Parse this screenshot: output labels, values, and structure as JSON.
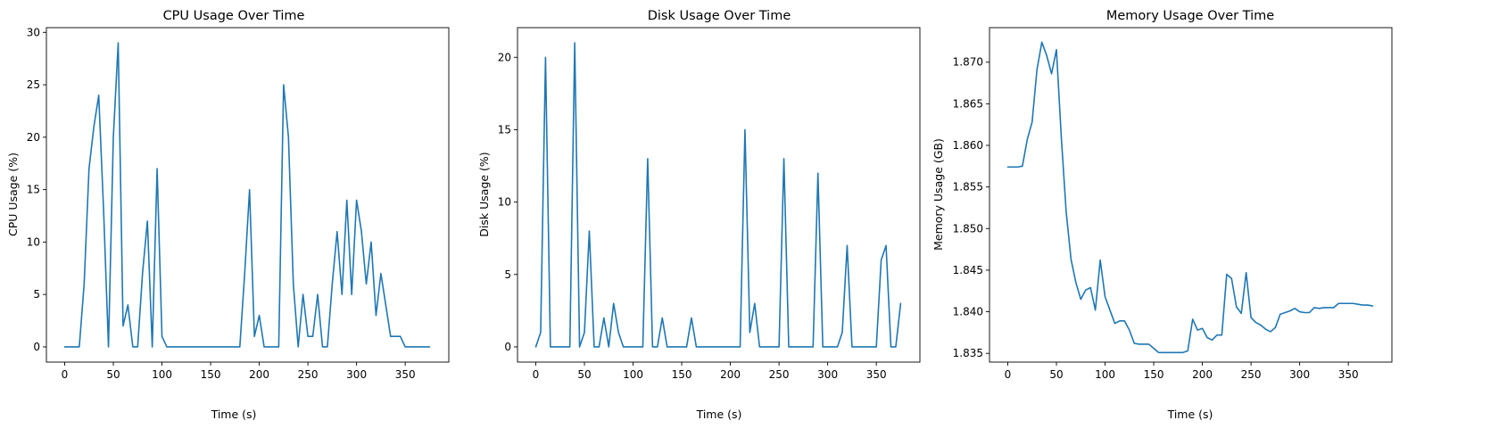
{
  "colors": {
    "series": "#1f77b4",
    "axes": "#000000",
    "background": "#ffffff"
  },
  "chart_data": [
    {
      "type": "line",
      "title": "CPU Usage Over Time",
      "xlabel": "Time (s)",
      "ylabel": "CPU Usage (%)",
      "xlim": [
        -18.8,
        394.8
      ],
      "ylim": [
        -1.45,
        30.45
      ],
      "xticks": [
        0,
        50,
        100,
        150,
        200,
        250,
        300,
        350
      ],
      "xtick_labels": [
        "0",
        "50",
        "100",
        "150",
        "200",
        "250",
        "300",
        "350"
      ],
      "yticks": [
        0,
        5,
        10,
        15,
        20,
        25,
        30
      ],
      "ytick_labels": [
        "0",
        "5",
        "10",
        "15",
        "20",
        "25",
        "30"
      ],
      "grid": false,
      "legend": "none",
      "series": [
        {
          "x": [
            0,
            5,
            10,
            15,
            20,
            25,
            30,
            35,
            40,
            45,
            50,
            55,
            60,
            65,
            70,
            75,
            80,
            85,
            90,
            95,
            100,
            105,
            110,
            115,
            120,
            125,
            130,
            135,
            140,
            145,
            150,
            155,
            160,
            165,
            170,
            175,
            180,
            185,
            190,
            195,
            200,
            205,
            210,
            215,
            220,
            225,
            230,
            235,
            240,
            245,
            250,
            255,
            260,
            265,
            270,
            275,
            280,
            285,
            290,
            295,
            300,
            305,
            310,
            315,
            320,
            325,
            330,
            335,
            340,
            345,
            350,
            355,
            360,
            365,
            370,
            375
          ],
          "y": [
            0,
            0,
            0,
            0,
            6,
            17,
            21,
            24,
            13,
            0,
            20,
            29,
            2,
            4,
            0,
            0,
            7,
            12,
            0,
            17,
            1,
            0,
            0,
            0,
            0,
            0,
            0,
            0,
            0,
            0,
            0,
            0,
            0,
            0,
            0,
            0,
            0,
            7,
            15,
            1,
            3,
            0,
            0,
            0,
            0,
            25,
            20,
            6,
            0,
            5,
            1,
            1,
            5,
            0,
            0,
            6,
            11,
            5,
            14,
            5,
            14,
            11,
            6,
            10,
            3,
            7,
            4,
            1,
            1,
            1,
            0,
            0,
            0,
            0,
            0,
            0
          ]
        }
      ]
    },
    {
      "type": "line",
      "title": "Disk Usage Over Time",
      "xlabel": "Time (s)",
      "ylabel": "Disk Usage (%)",
      "xlim": [
        -18.8,
        394.8
      ],
      "ylim": [
        -1.05,
        22.05
      ],
      "xticks": [
        0,
        50,
        100,
        150,
        200,
        250,
        300,
        350
      ],
      "xtick_labels": [
        "0",
        "50",
        "100",
        "150",
        "200",
        "250",
        "300",
        "350"
      ],
      "yticks": [
        0,
        5,
        10,
        15,
        20
      ],
      "ytick_labels": [
        "0",
        "5",
        "10",
        "15",
        "20"
      ],
      "grid": false,
      "legend": "none",
      "series": [
        {
          "x": [
            0,
            5,
            10,
            15,
            20,
            25,
            30,
            35,
            40,
            45,
            50,
            55,
            60,
            65,
            70,
            75,
            80,
            85,
            90,
            95,
            100,
            105,
            110,
            115,
            120,
            125,
            130,
            135,
            140,
            145,
            150,
            155,
            160,
            165,
            170,
            175,
            180,
            185,
            190,
            195,
            200,
            205,
            210,
            215,
            220,
            225,
            230,
            235,
            240,
            245,
            250,
            255,
            260,
            265,
            270,
            275,
            280,
            285,
            290,
            295,
            300,
            305,
            310,
            315,
            320,
            325,
            330,
            335,
            340,
            345,
            350,
            355,
            360,
            365,
            370,
            375
          ],
          "y": [
            0,
            1,
            20,
            0,
            0,
            0,
            0,
            0,
            21,
            0,
            1,
            8,
            0,
            0,
            2,
            0,
            3,
            1,
            0,
            0,
            0,
            0,
            0,
            13,
            0,
            0,
            2,
            0,
            0,
            0,
            0,
            0,
            2,
            0,
            0,
            0,
            0,
            0,
            0,
            0,
            0,
            0,
            0,
            15,
            1,
            3,
            0,
            0,
            0,
            0,
            0,
            13,
            0,
            0,
            0,
            0,
            0,
            0,
            12,
            0,
            0,
            0,
            0,
            1,
            7,
            0,
            0,
            0,
            0,
            0,
            0,
            6,
            7,
            0,
            0,
            3
          ]
        }
      ]
    },
    {
      "type": "line",
      "title": "Memory Usage Over Time",
      "xlabel": "Time (s)",
      "ylabel": "Memory Usage (GB)",
      "xlim": [
        -18.8,
        394.8
      ],
      "ylim": [
        1.83395,
        1.87415
      ],
      "xticks": [
        0,
        50,
        100,
        150,
        200,
        250,
        300,
        350
      ],
      "xtick_labels": [
        "0",
        "50",
        "100",
        "150",
        "200",
        "250",
        "300",
        "350"
      ],
      "yticks": [
        1.835,
        1.84,
        1.845,
        1.85,
        1.855,
        1.86,
        1.865,
        1.87
      ],
      "ytick_labels": [
        "1.835",
        "1.840",
        "1.845",
        "1.850",
        "1.855",
        "1.860",
        "1.865",
        "1.870"
      ],
      "grid": false,
      "legend": "none",
      "series": [
        {
          "x": [
            0,
            5,
            10,
            15,
            20,
            25,
            30,
            35,
            40,
            45,
            50,
            55,
            60,
            65,
            70,
            75,
            80,
            85,
            90,
            95,
            100,
            105,
            110,
            115,
            120,
            125,
            130,
            135,
            140,
            145,
            150,
            155,
            160,
            165,
            170,
            175,
            180,
            185,
            190,
            195,
            200,
            205,
            210,
            215,
            220,
            225,
            230,
            235,
            240,
            245,
            250,
            255,
            260,
            265,
            270,
            275,
            280,
            285,
            290,
            295,
            300,
            305,
            310,
            315,
            320,
            325,
            330,
            335,
            340,
            345,
            350,
            355,
            360,
            365,
            370,
            375
          ],
          "y": [
            1.8574,
            1.8574,
            1.8574,
            1.8575,
            1.8607,
            1.8628,
            1.8691,
            1.8724,
            1.8708,
            1.8686,
            1.8715,
            1.861,
            1.852,
            1.8463,
            1.8435,
            1.8415,
            1.8426,
            1.8429,
            1.8402,
            1.8462,
            1.8418,
            1.8402,
            1.8386,
            1.8389,
            1.8389,
            1.8378,
            1.8362,
            1.8361,
            1.8361,
            1.8361,
            1.8356,
            1.8351,
            1.8351,
            1.8351,
            1.8351,
            1.8351,
            1.8351,
            1.8353,
            1.8391,
            1.8378,
            1.838,
            1.8369,
            1.8366,
            1.8372,
            1.8372,
            1.8445,
            1.844,
            1.8406,
            1.8398,
            1.8447,
            1.8393,
            1.8387,
            1.8384,
            1.8379,
            1.8376,
            1.8381,
            1.8397,
            1.8399,
            1.8401,
            1.8404,
            1.84,
            1.8399,
            1.8399,
            1.8405,
            1.8404,
            1.8405,
            1.8405,
            1.8405,
            1.841,
            1.841,
            1.841,
            1.841,
            1.8409,
            1.8408,
            1.8408,
            1.8407
          ]
        }
      ]
    }
  ]
}
